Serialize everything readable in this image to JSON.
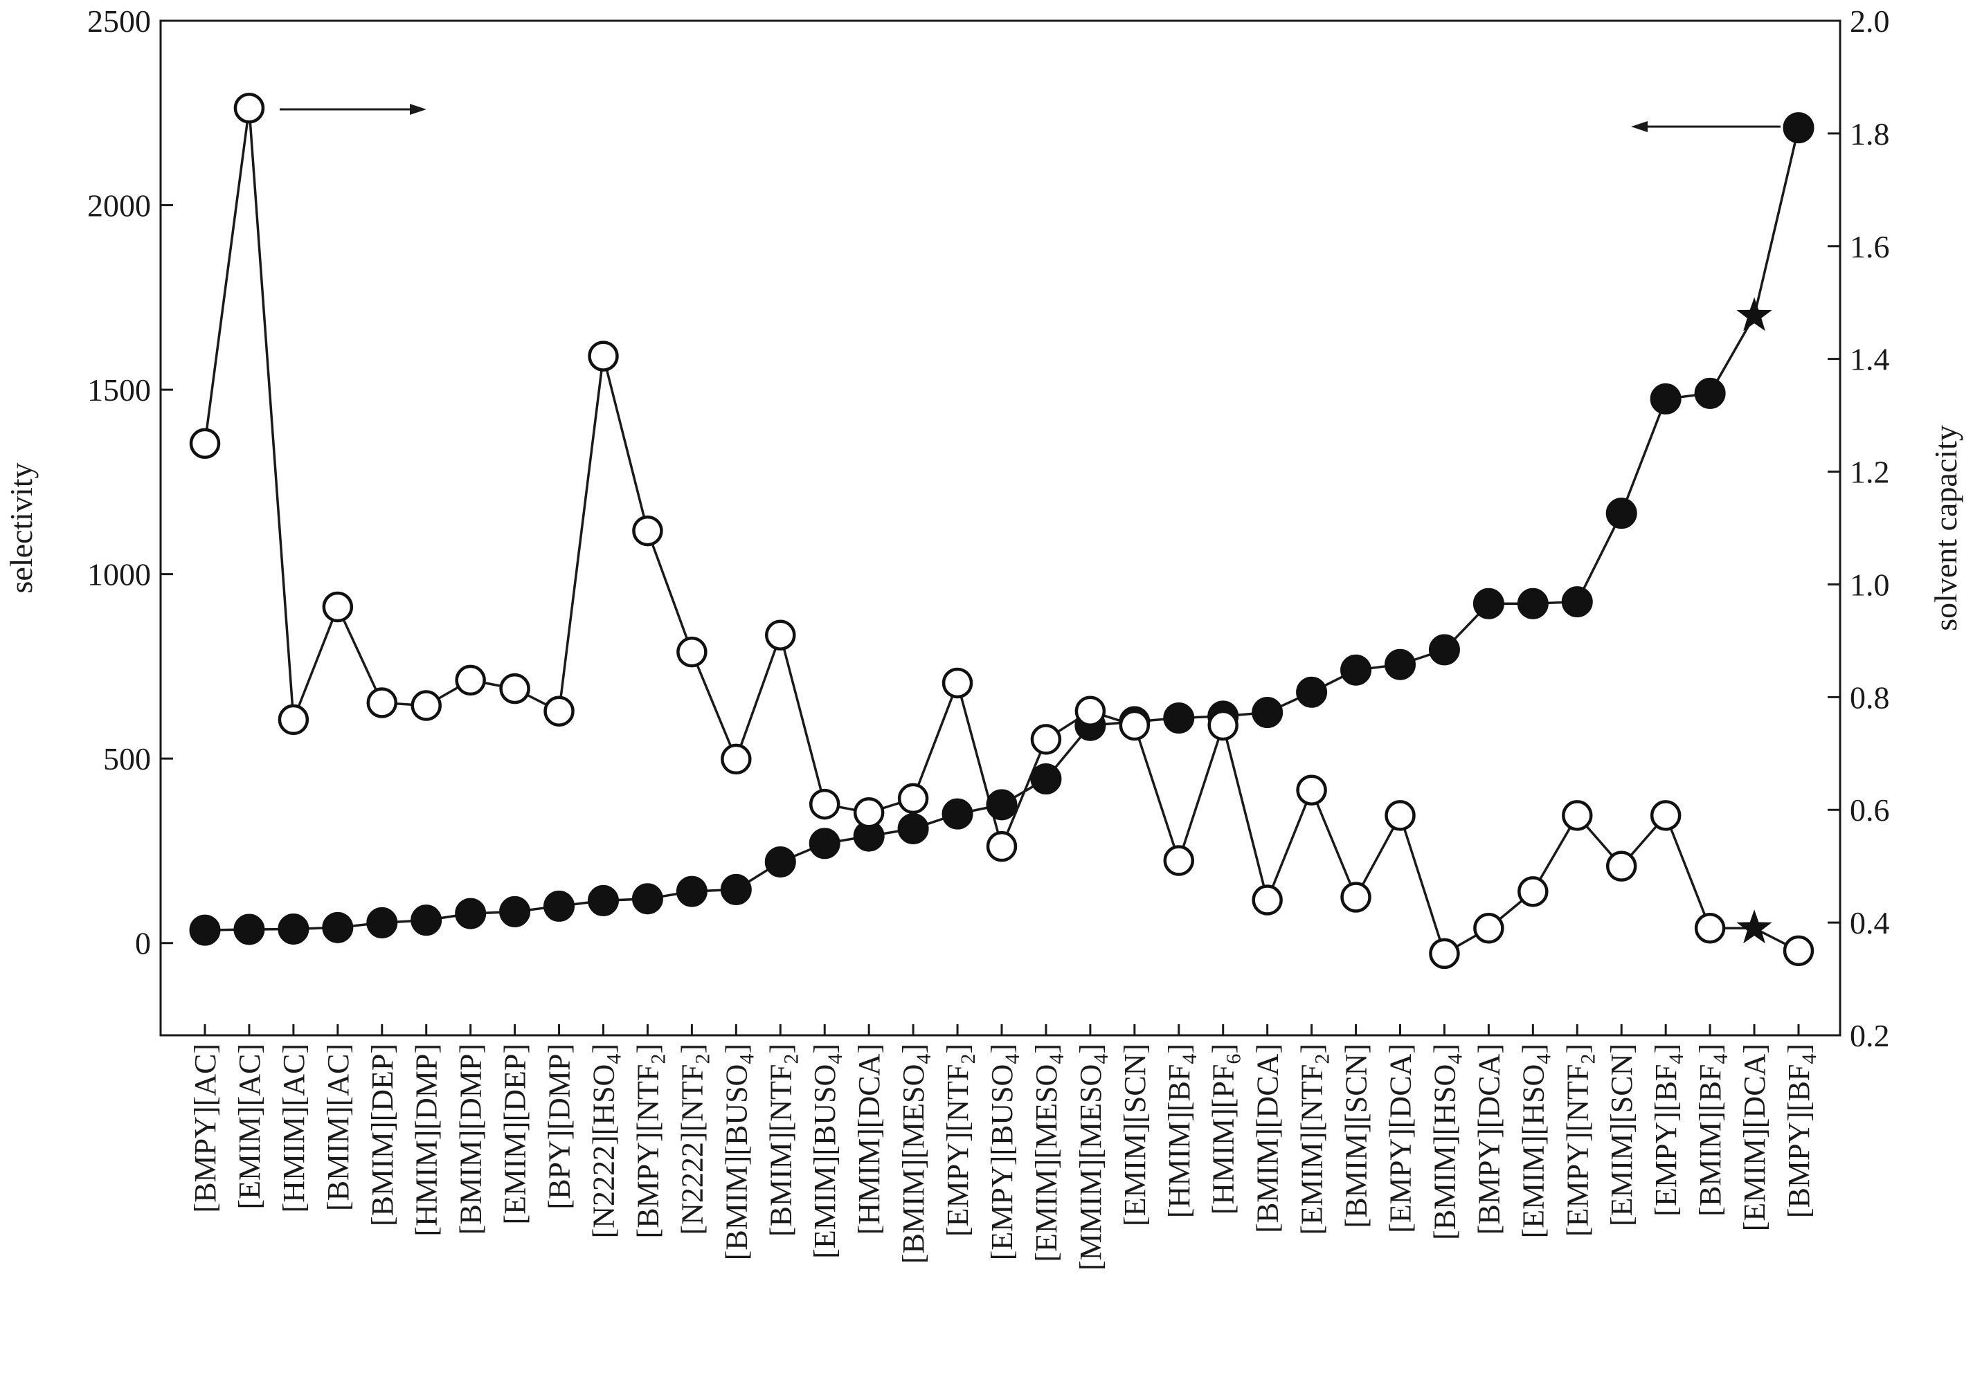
{
  "chart_data": {
    "type": "line",
    "ylabel": "selectivity",
    "y2label": "solvent capacity",
    "ylim": [
      -250,
      2500
    ],
    "y2lim": [
      0.2,
      2.0
    ],
    "yticks": [
      0,
      500,
      1000,
      1500,
      2000,
      2500
    ],
    "y2ticks": [
      0.2,
      0.4,
      0.6,
      0.8,
      1.0,
      1.2,
      1.4,
      1.6,
      1.8,
      2.0
    ],
    "ytick_labels": [
      "0",
      "500",
      "1000",
      "1500",
      "2000",
      "2500"
    ],
    "y2tick_labels": [
      "0.2",
      "0.4",
      "0.6",
      "0.8",
      "1.0",
      "1.2",
      "1.4",
      "1.6",
      "1.8",
      "2.0"
    ],
    "categories": [
      {
        "cation": "BMPY",
        "anion": "AC",
        "sub": ""
      },
      {
        "cation": "EMIM",
        "anion": "AC",
        "sub": ""
      },
      {
        "cation": "HMIM",
        "anion": "AC",
        "sub": ""
      },
      {
        "cation": "BMIM",
        "anion": "AC",
        "sub": ""
      },
      {
        "cation": "BMIM",
        "anion": "DEP",
        "sub": ""
      },
      {
        "cation": "HMIM",
        "anion": "DMP",
        "sub": ""
      },
      {
        "cation": "BMIM",
        "anion": "DMP",
        "sub": ""
      },
      {
        "cation": "EMIM",
        "anion": "DEP",
        "sub": ""
      },
      {
        "cation": "BPY",
        "anion": "DMP",
        "sub": ""
      },
      {
        "cation": "N2222",
        "anion": "HSO",
        "sub": "4"
      },
      {
        "cation": "BMPY",
        "anion": "NTF",
        "sub": "2"
      },
      {
        "cation": "N2222",
        "anion": "NTF",
        "sub": "2"
      },
      {
        "cation": "BMIM",
        "anion": "BUSO",
        "sub": "4"
      },
      {
        "cation": "BMIM",
        "anion": "NTF",
        "sub": "2"
      },
      {
        "cation": "EMIM",
        "anion": "BUSO",
        "sub": "4"
      },
      {
        "cation": "HMIM",
        "anion": "DCA",
        "sub": ""
      },
      {
        "cation": "BMIM",
        "anion": "MESO",
        "sub": "4"
      },
      {
        "cation": "EMPY",
        "anion": "NTF",
        "sub": "2"
      },
      {
        "cation": "EMPY",
        "anion": "BUSO",
        "sub": "4"
      },
      {
        "cation": "EMIM",
        "anion": "MESO",
        "sub": "4"
      },
      {
        "cation": "MMIM",
        "anion": "MESO",
        "sub": "4"
      },
      {
        "cation": "EMIM",
        "anion": "SCN",
        "sub": ""
      },
      {
        "cation": "HMIM",
        "anion": "BF",
        "sub": "4"
      },
      {
        "cation": "HMIM",
        "anion": "PF",
        "sub": "6"
      },
      {
        "cation": "BMIM",
        "anion": "DCA",
        "sub": ""
      },
      {
        "cation": "EMIM",
        "anion": "NTF",
        "sub": "2"
      },
      {
        "cation": "BMIM",
        "anion": "SCN",
        "sub": ""
      },
      {
        "cation": "EMPY",
        "anion": "DCA",
        "sub": ""
      },
      {
        "cation": "BMIM",
        "anion": "HSO",
        "sub": "4"
      },
      {
        "cation": "BMPY",
        "anion": "DCA",
        "sub": ""
      },
      {
        "cation": "EMIM",
        "anion": "HSO",
        "sub": "4"
      },
      {
        "cation": "EMPY",
        "anion": "NTF",
        "sub": "2"
      },
      {
        "cation": "EMIM",
        "anion": "SCN",
        "sub": ""
      },
      {
        "cation": "EMPY",
        "anion": "BF",
        "sub": "4"
      },
      {
        "cation": "BMIM",
        "anion": "BF",
        "sub": "4"
      },
      {
        "cation": "EMIM",
        "anion": "DCA",
        "sub": ""
      },
      {
        "cation": "BMPY",
        "anion": "BF",
        "sub": "4"
      }
    ],
    "series": [
      {
        "axis": "left",
        "marker": "filled-circle",
        "values": [
          35,
          37,
          38,
          42,
          55,
          62,
          80,
          85,
          100,
          115,
          120,
          140,
          145,
          220,
          270,
          290,
          310,
          350,
          375,
          445,
          590,
          600,
          610,
          615,
          625,
          680,
          740,
          755,
          795,
          920,
          920,
          925,
          1165,
          1475,
          1490,
          1700,
          2210
        ],
        "star_index": 35
      },
      {
        "axis": "right",
        "marker": "open-circle",
        "values": [
          1.25,
          1.845,
          0.76,
          0.96,
          0.79,
          0.785,
          0.83,
          0.815,
          0.775,
          1.405,
          1.095,
          0.88,
          0.69,
          0.91,
          0.61,
          0.595,
          0.62,
          0.825,
          0.535,
          0.725,
          0.775,
          0.75,
          0.51,
          0.75,
          0.44,
          0.635,
          0.445,
          0.59,
          0.345,
          0.39,
          0.455,
          0.59,
          0.5,
          0.59,
          0.39,
          0.39,
          0.35
        ],
        "star_index": 35
      }
    ],
    "annotations": [
      {
        "type": "arrow",
        "direction": "right",
        "near_series": 1
      },
      {
        "type": "arrow",
        "direction": "left",
        "near_series": 0
      }
    ]
  }
}
